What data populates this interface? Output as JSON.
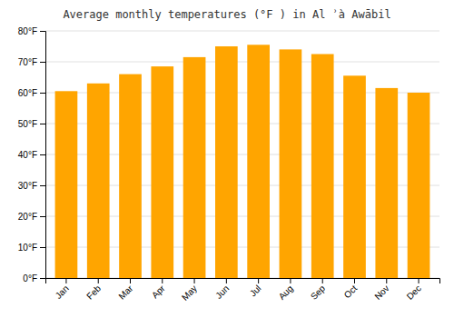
{
  "chart_data": {
    "type": "bar",
    "title": "Average monthly temperatures (°F ) in Al ʾà Awābil",
    "categories": [
      "Jan",
      "Feb",
      "Mar",
      "Apr",
      "May",
      "Jun",
      "Jul",
      "Aug",
      "Sep",
      "Oct",
      "Nov",
      "Dec"
    ],
    "values": [
      60.5,
      63.0,
      66.0,
      68.5,
      71.5,
      75.0,
      75.5,
      74.0,
      72.5,
      65.5,
      61.5,
      60.0
    ],
    "color": "#FFA500",
    "ylim": [
      0,
      80
    ],
    "yticks": [
      {
        "value": 0,
        "label": "0°F"
      },
      {
        "value": 10,
        "label": "10°F"
      },
      {
        "value": 20,
        "label": "20°F"
      },
      {
        "value": 30,
        "label": "30°F"
      },
      {
        "value": 40,
        "label": "40°F"
      },
      {
        "value": 50,
        "label": "50°F"
      },
      {
        "value": 60,
        "label": "60°F"
      },
      {
        "value": 70,
        "label": "70°F"
      },
      {
        "value": 80,
        "label": "80°F"
      }
    ],
    "grid": true
  }
}
